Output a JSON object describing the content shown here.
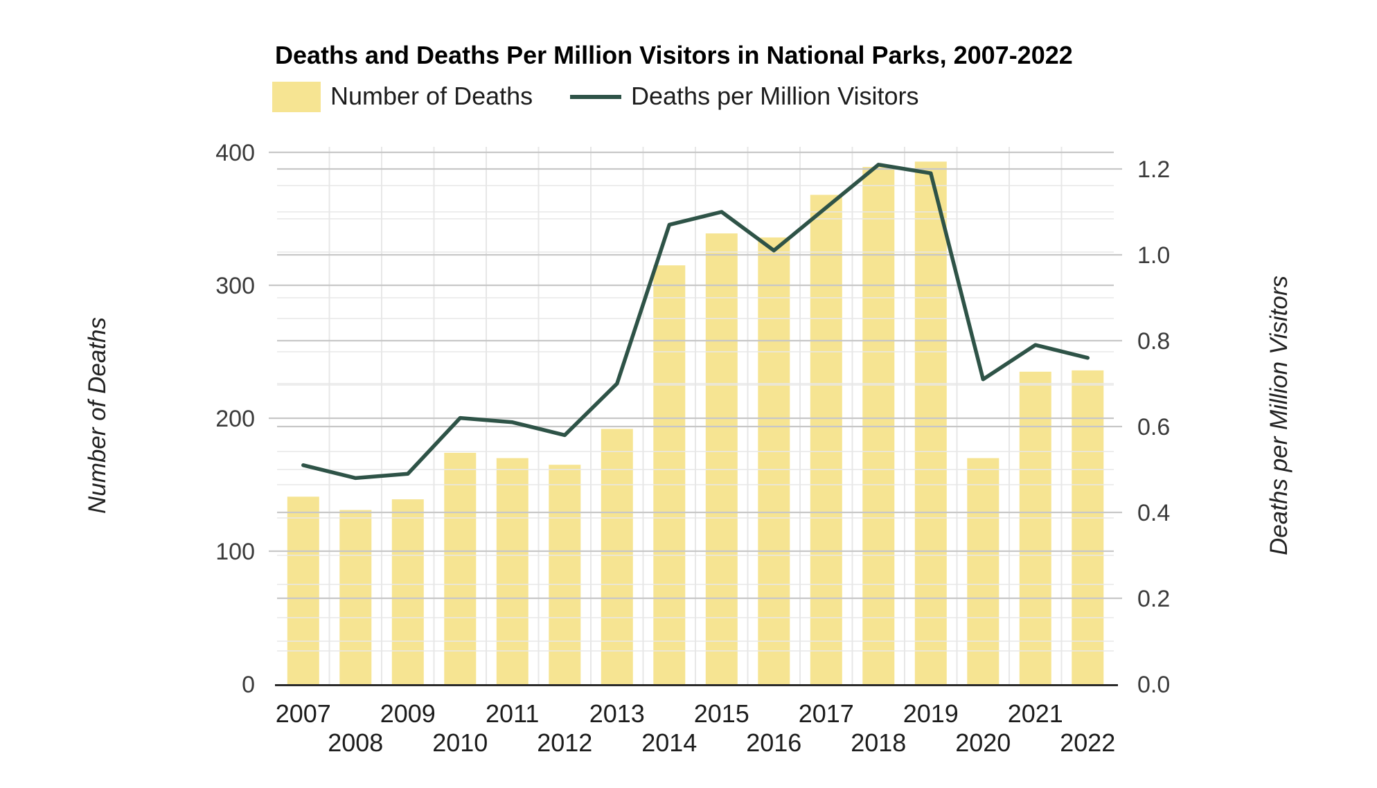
{
  "title": "Deaths and Deaths Per Million Visitors in National Parks, 2007-2022",
  "legend": {
    "items": [
      {
        "label": "Number of Deaths",
        "marker": "bar-swatch"
      },
      {
        "label": "Deaths per Million Visitors",
        "marker": "line-swatch"
      }
    ]
  },
  "colors": {
    "bar": "#F6E492",
    "line": "#2E5347",
    "grid_major": "#c7c7c7",
    "grid_minor": "#e7e7e7",
    "grid_vertical": "#e7e7e7",
    "axis_line": "#2a2a2a",
    "title_text": "#000000",
    "tick_text": "#3a3a3a",
    "year_text": "#1c1c1c",
    "axis_title_text": "#222222"
  },
  "chart_data": {
    "type": "bar+line",
    "title": "Deaths and Deaths Per Million Visitors in National Parks, 2007-2022",
    "categories": [
      2007,
      2008,
      2009,
      2010,
      2011,
      2012,
      2013,
      2014,
      2015,
      2016,
      2017,
      2018,
      2019,
      2020,
      2021,
      2022
    ],
    "series": [
      {
        "name": "Number of Deaths",
        "type": "bar",
        "axis": "left",
        "values": [
          141,
          131,
          139,
          174,
          170,
          165,
          192,
          315,
          339,
          336,
          368,
          389,
          393,
          170,
          235,
          236
        ]
      },
      {
        "name": "Deaths per Million Visitors",
        "type": "line",
        "axis": "right",
        "values": [
          0.51,
          0.48,
          0.49,
          0.62,
          0.61,
          0.58,
          0.7,
          1.07,
          1.1,
          1.01,
          1.11,
          1.21,
          1.19,
          0.71,
          0.79,
          0.76
        ]
      }
    ],
    "left_axis": {
      "label": "Number of Deaths",
      "ticks": [
        0,
        100,
        200,
        300,
        400
      ],
      "minor_step": 25,
      "range": [
        0,
        400
      ]
    },
    "right_axis": {
      "label": "Deaths per Million Visitors",
      "ticks": [
        "0.0",
        "0.2",
        "0.4",
        "0.6",
        "0.8",
        "1.0",
        "1.2"
      ],
      "minor_step": 0.1,
      "range": [
        0,
        1.24
      ]
    },
    "x_tick_rows": {
      "odd_years_row": [
        2007,
        2009,
        2011,
        2013,
        2015,
        2017,
        2019,
        2021
      ],
      "even_years_row": [
        2008,
        2010,
        2012,
        2014,
        2016,
        2018,
        2020,
        2022
      ]
    },
    "grid": {
      "horizontal_major": true,
      "horizontal_minor": true,
      "vertical": "category-boundaries"
    },
    "legend_position": "top-left"
  }
}
